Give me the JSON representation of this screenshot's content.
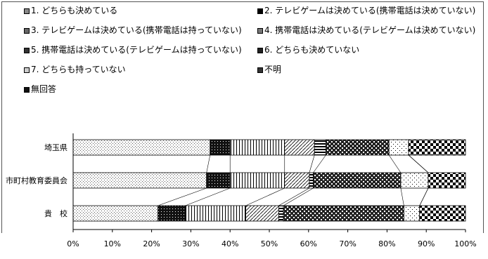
{
  "legend": [
    {
      "label": "1. どちらも決めている",
      "pattern": "dots-fine"
    },
    {
      "label": "2. テレビゲームは決めている(携帯電話は決めていない)",
      "pattern": "solid-dark"
    },
    {
      "label": "3. テレビゲームは決めている(携帯電話は持っていない)",
      "pattern": "vertical-lines"
    },
    {
      "label": "4. 携帯電話は決めている(テレビゲームは決めていない)",
      "pattern": "diagonal-lines"
    },
    {
      "label": "5. 携帯電話は決めている(テレビゲームは持っていない)",
      "pattern": "dark-horizontal"
    },
    {
      "label": "6. どちらも決めていない",
      "pattern": "cross-hatch"
    },
    {
      "label": "7. どちらも持っていない",
      "pattern": "sparse-dots"
    },
    {
      "label": "不明",
      "pattern": "small-checker"
    },
    {
      "label": "無回答",
      "pattern": "big-checker"
    }
  ],
  "chart_data": {
    "type": "bar",
    "orientation": "horizontal",
    "stacked": true,
    "percent_scale": true,
    "categories": [
      "埼玉県",
      "市町村教育委員会",
      "貴　校"
    ],
    "series": [
      {
        "name": "1. どちらも決めている",
        "values": [
          34.9,
          34.0,
          21.6
        ]
      },
      {
        "name": "2. テレビゲームは決めている(携帯電話は決めていない)",
        "values": [
          5.1,
          6.0,
          7.0
        ]
      },
      {
        "name": "3. テレビゲームは決めている(携帯電話は持っていない)",
        "values": [
          13.9,
          13.9,
          15.4
        ]
      },
      {
        "name": "4. 携帯電話は決めている(テレビゲームは決めていない)",
        "values": [
          7.6,
          6.3,
          8.4
        ]
      },
      {
        "name": "5. 携帯電話は決めている(テレビゲームは持っていない)",
        "values": [
          2.9,
          1.0,
          1.2
        ]
      },
      {
        "name": "6. どちらも決めていない",
        "values": [
          16.1,
          22.3,
          30.7
        ]
      },
      {
        "name": "7. どちらも持っていない",
        "values": [
          5.0,
          7.0,
          4.0
        ]
      },
      {
        "name": "不明",
        "values": [
          0,
          0,
          0
        ]
      },
      {
        "name": "無回答",
        "values": [
          14.5,
          9.5,
          11.7
        ]
      }
    ],
    "xlim": [
      0,
      100
    ],
    "xticks": [
      "0%",
      "10%",
      "20%",
      "30%",
      "40%",
      "50%",
      "60%",
      "70%",
      "80%",
      "90%",
      "100%"
    ],
    "connector_lines": true,
    "legend_position": "top"
  }
}
